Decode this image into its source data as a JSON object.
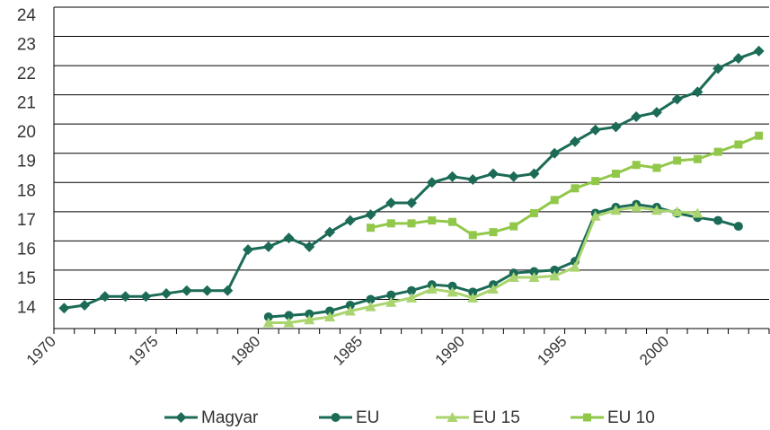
{
  "chart_data": {
    "type": "line",
    "categories": [
      "1970",
      null,
      null,
      null,
      null,
      "1975",
      null,
      null,
      null,
      null,
      "1980",
      null,
      null,
      null,
      null,
      "1985",
      null,
      null,
      null,
      null,
      "1990",
      null,
      null,
      null,
      null,
      "1995",
      null,
      null,
      null,
      null,
      "2000",
      null,
      null,
      null,
      null
    ],
    "ylim": [
      13,
      24
    ],
    "yticks": [
      14,
      15,
      16,
      17,
      18,
      19,
      20,
      21,
      22,
      23,
      24
    ],
    "grid": true,
    "legend": "bottom",
    "series": [
      {
        "name": "Magyar",
        "color": "#1b6b57",
        "marker": "diamond",
        "values": [
          13.7,
          13.8,
          14.1,
          14.1,
          14.1,
          14.2,
          14.3,
          14.3,
          14.3,
          15.7,
          15.8,
          16.1,
          15.8,
          16.3,
          16.7,
          16.9,
          17.3,
          17.3,
          18.0,
          18.2,
          18.1,
          18.3,
          18.2,
          18.3,
          19.0,
          19.4,
          19.8,
          19.9,
          20.25,
          20.4,
          20.85,
          21.1,
          21.9,
          22.25,
          22.5
        ]
      },
      {
        "name": "EU",
        "color": "#1b6b57",
        "marker": "circle",
        "values": [
          null,
          null,
          null,
          null,
          null,
          null,
          null,
          null,
          null,
          null,
          13.4,
          13.45,
          13.5,
          13.6,
          13.8,
          14.0,
          14.15,
          14.3,
          14.5,
          14.45,
          14.25,
          14.5,
          14.9,
          14.95,
          15.0,
          15.3,
          16.95,
          17.15,
          17.25,
          17.15,
          16.95,
          16.8,
          16.7,
          16.5,
          null
        ]
      },
      {
        "name": "EU 15",
        "color": "#a9d46e",
        "marker": "triangle",
        "values": [
          null,
          null,
          null,
          null,
          null,
          null,
          null,
          null,
          null,
          null,
          13.2,
          13.2,
          13.3,
          13.4,
          13.6,
          13.75,
          13.9,
          14.05,
          14.35,
          14.25,
          14.05,
          14.35,
          14.75,
          14.75,
          14.8,
          15.1,
          16.85,
          17.05,
          17.15,
          17.05,
          17.0,
          16.95,
          null,
          null,
          null
        ]
      },
      {
        "name": "EU 10",
        "color": "#92c84a",
        "marker": "square",
        "values": [
          null,
          null,
          null,
          null,
          null,
          null,
          null,
          null,
          null,
          null,
          null,
          null,
          null,
          null,
          null,
          16.45,
          16.6,
          16.6,
          16.7,
          16.65,
          16.2,
          16.3,
          16.5,
          16.95,
          17.4,
          17.8,
          18.05,
          18.3,
          18.6,
          18.5,
          18.75,
          18.8,
          19.05,
          19.3,
          19.6
        ]
      }
    ]
  }
}
